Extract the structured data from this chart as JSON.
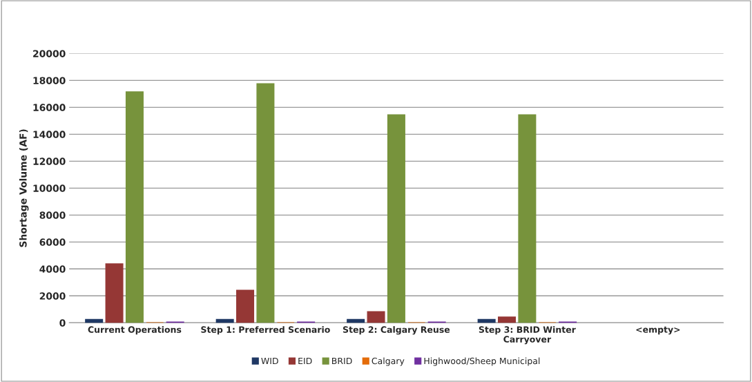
{
  "chart_data": {
    "type": "bar",
    "ylabel": "Shortage Volume (AF)",
    "categories": [
      "Current Operations",
      "Step 1: Preferred Scenario",
      "Step 2: Calgary Reuse",
      "Step 3: BRID Winter\nCarryover",
      "<empty>"
    ],
    "series": [
      {
        "name": "WID",
        "color": "#1f3864",
        "values": [
          250,
          250,
          250,
          250,
          null
        ]
      },
      {
        "name": "EID",
        "color": "#953735",
        "values": [
          4380,
          2420,
          830,
          430,
          null
        ]
      },
      {
        "name": "BRID",
        "color": "#77933c",
        "values": [
          17150,
          17750,
          15450,
          15450,
          null
        ]
      },
      {
        "name": "Calgary",
        "color": "#e46c0a",
        "values": [
          0,
          0,
          0,
          0,
          null
        ]
      },
      {
        "name": "Highwood/Sheep Municipal",
        "color": "#7030a0",
        "values": [
          50,
          50,
          50,
          50,
          null
        ]
      }
    ],
    "ylim": [
      0,
      20000
    ],
    "yticks": [
      0,
      2000,
      4000,
      6000,
      8000,
      10000,
      12000,
      14000,
      16000,
      18000,
      20000
    ],
    "grid": "y",
    "legend": "bottom"
  }
}
